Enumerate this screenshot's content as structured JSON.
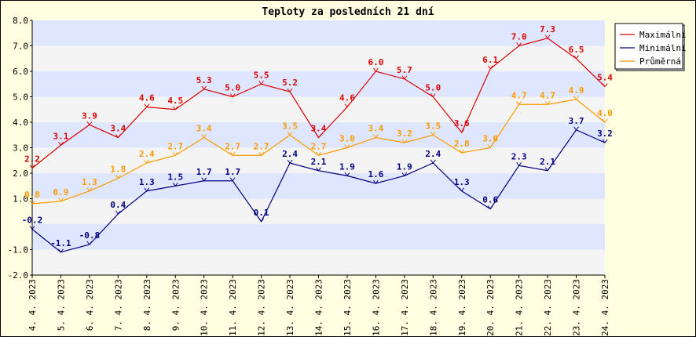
{
  "chart_data": {
    "type": "line",
    "title": "Teploty za posledních 21 dní",
    "xlabel": "",
    "ylabel": "",
    "ylim": [
      -2.0,
      8.0
    ],
    "yticks": [
      "8.0",
      "7.0",
      "6.0",
      "5.0",
      "4.0",
      "3.0",
      "2.0",
      "1.0",
      "-1.0",
      "-2.0"
    ],
    "ytick_values": [
      8,
      7,
      6,
      5,
      4,
      3,
      2,
      1,
      -1,
      -2
    ],
    "categories": [
      "4. 4. 2023",
      "5. 4. 2023",
      "6. 4. 2023",
      "7. 4. 2023",
      "8. 4. 2023",
      "9. 4. 2023",
      "10. 4. 2023",
      "11. 4. 2023",
      "12. 4. 2023",
      "13. 4. 2023",
      "14. 4. 2023",
      "15. 4. 2023",
      "16. 4. 2023",
      "17. 4. 2023",
      "18. 4. 2023",
      "19. 4. 2023",
      "20. 4. 2023",
      "21. 4. 2023",
      "22. 4. 2023",
      "23. 4. 2023",
      "24. 4. 2023"
    ],
    "series": [
      {
        "name": "Maximální",
        "color": "#dd0000",
        "values": [
          2.2,
          3.1,
          3.9,
          3.4,
          4.6,
          4.5,
          5.3,
          5.0,
          5.5,
          5.2,
          3.4,
          4.6,
          6.0,
          5.7,
          5.0,
          3.6,
          6.1,
          7.0,
          7.3,
          6.5,
          5.4
        ]
      },
      {
        "name": "Minimální",
        "color": "#000080",
        "values": [
          -0.2,
          -1.1,
          -0.8,
          0.4,
          1.3,
          1.5,
          1.7,
          1.7,
          0.1,
          2.4,
          2.1,
          1.9,
          1.6,
          1.9,
          2.4,
          1.3,
          0.6,
          2.3,
          2.1,
          3.7,
          3.2
        ]
      },
      {
        "name": "Průměrná",
        "color": "#ff9900",
        "values": [
          0.8,
          0.9,
          1.3,
          1.8,
          2.4,
          2.7,
          3.4,
          2.7,
          2.7,
          3.5,
          2.7,
          3.0,
          3.4,
          3.2,
          3.5,
          2.8,
          3.0,
          4.7,
          4.7,
          4.9,
          4.0
        ]
      }
    ],
    "grid": true,
    "legend": "top-right"
  }
}
